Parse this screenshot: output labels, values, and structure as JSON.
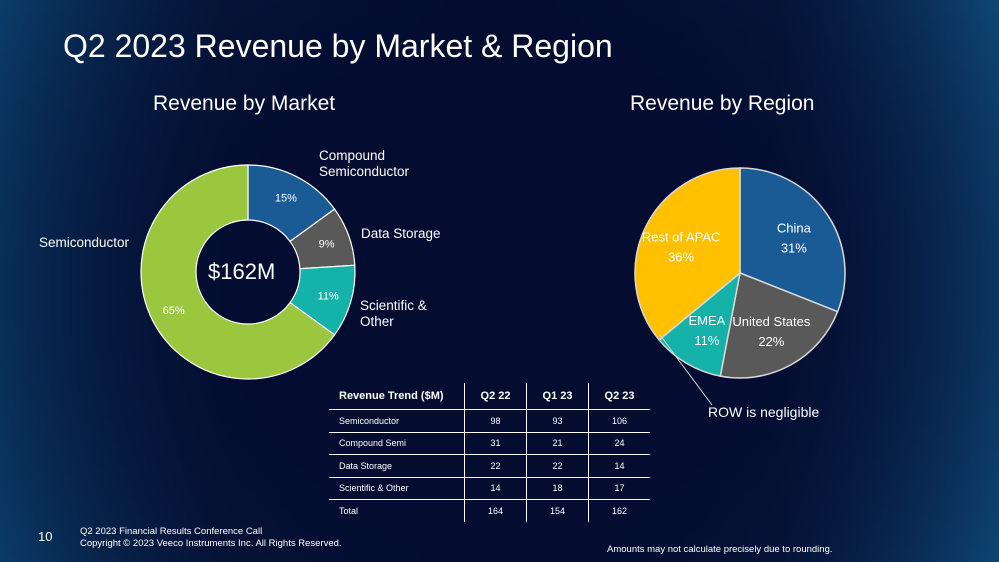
{
  "slide": {
    "title": "Q2 2023 Revenue by Market & Region",
    "page_number": "10",
    "footer_line1": "Q2 2023 Financial Results Conference Call",
    "footer_line2": "Copyright © 2023 Veeco Instruments Inc. All Rights Reserved.",
    "footnote": "Amounts may not calculate precisely due to rounding."
  },
  "chart_data": [
    {
      "type": "pie",
      "variant": "donut",
      "title": "Revenue by Market",
      "center_label": "$162M",
      "slices": [
        {
          "label": "Compound\nSemiconductor",
          "value": 15,
          "display": "15%",
          "color": "#1a5b96"
        },
        {
          "label": "Data Storage",
          "value": 9,
          "display": "9%",
          "color": "#595959"
        },
        {
          "label": "Scientific &\nOther",
          "value": 11,
          "display": "11%",
          "color": "#14b2a9"
        },
        {
          "label": "Semiconductor",
          "value": 65,
          "display": "65%",
          "color": "#9ac73e"
        }
      ]
    },
    {
      "type": "pie",
      "title": "Revenue by Region",
      "note": "ROW is negligible",
      "slices": [
        {
          "label": "China",
          "value": 31,
          "display": "31%",
          "color": "#1a5b96"
        },
        {
          "label": "United States",
          "value": 22,
          "display": "22%",
          "color": "#595959"
        },
        {
          "label": "EMEA",
          "value": 11,
          "display": "11%",
          "color": "#14b2a9"
        },
        {
          "label": "Rest of APAC",
          "value": 36,
          "display": "36%",
          "color": "#ffc000"
        }
      ]
    },
    {
      "type": "table",
      "title": "Revenue Trend ($M)",
      "columns": [
        "Revenue Trend ($M)",
        "Q2 22",
        "Q1 23",
        "Q2 23"
      ],
      "rows": [
        [
          "Semiconductor",
          "98",
          "93",
          "106"
        ],
        [
          "Compound Semi",
          "31",
          "21",
          "24"
        ],
        [
          "Data Storage",
          "22",
          "22",
          "14"
        ],
        [
          "Scientific & Other",
          "14",
          "18",
          "17"
        ],
        [
          "Total",
          "164",
          "154",
          "162"
        ]
      ]
    }
  ]
}
